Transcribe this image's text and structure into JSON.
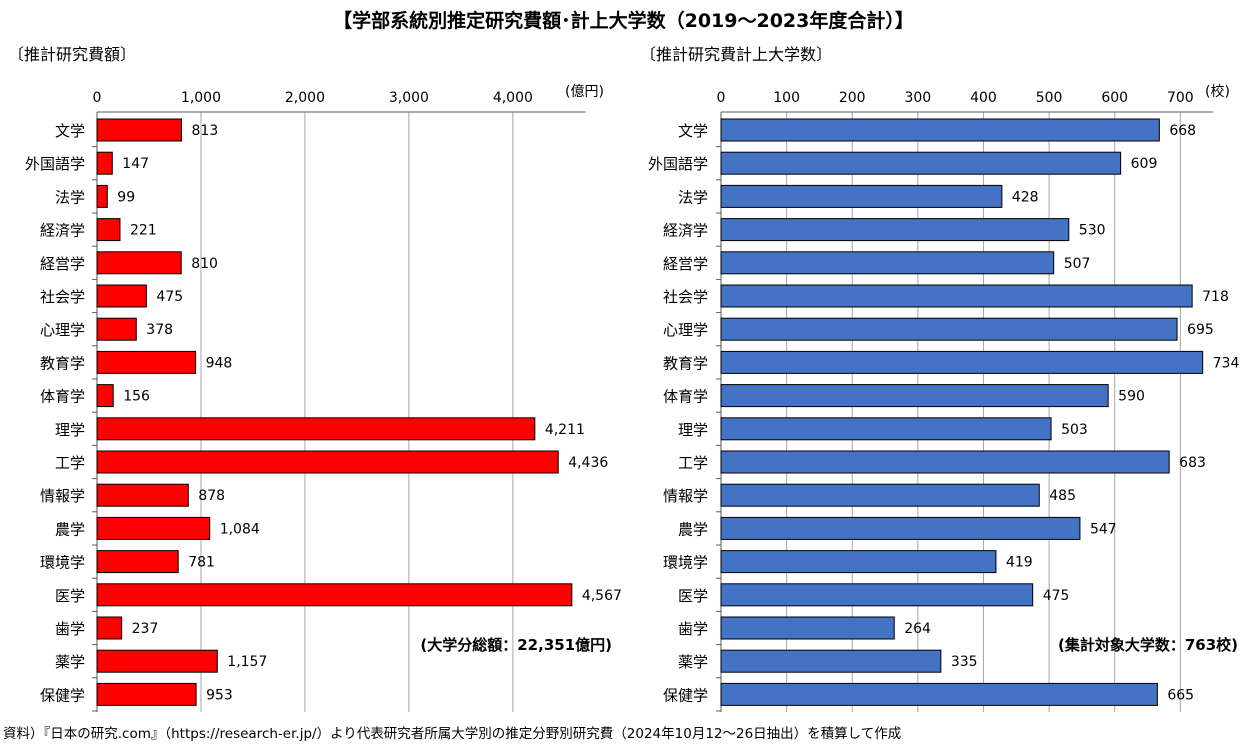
{
  "title": "【学部系統別推定研究費額･計上大学数（2019～2023年度合計）】",
  "footnote": "資料）『日本の研究.com』（https://research-er.jp/）より代表研究者所属大学別の推定分野別研究費（2024年10月12～26日抽出）を積算して作成",
  "chart_data": [
    {
      "type": "bar",
      "orientation": "horizontal",
      "title": "〔推計研究費額〕",
      "unit": "(億円)",
      "total_note": "(大学分総額：22,351億円)",
      "color": "#ff0000",
      "xlim": [
        0,
        4700
      ],
      "ticks": [
        0,
        1000,
        2000,
        3000,
        4000
      ],
      "tick_labels": [
        "0",
        "1,000",
        "2,000",
        "3,000",
        "4,000"
      ],
      "categories": [
        "文学",
        "外国語学",
        "法学",
        "経済学",
        "経営学",
        "社会学",
        "心理学",
        "教育学",
        "体育学",
        "理学",
        "工学",
        "情報学",
        "農学",
        "環境学",
        "医学",
        "歯学",
        "薬学",
        "保健学"
      ],
      "values": [
        813,
        147,
        99,
        221,
        810,
        475,
        378,
        948,
        156,
        4211,
        4436,
        878,
        1084,
        781,
        4567,
        237,
        1157,
        953
      ],
      "value_labels": [
        "813",
        "147",
        "99",
        "221",
        "810",
        "475",
        "378",
        "948",
        "156",
        "4,211",
        "4,436",
        "878",
        "1,084",
        "781",
        "4,567",
        "237",
        "1,157",
        "953"
      ]
    },
    {
      "type": "bar",
      "orientation": "horizontal",
      "title": "〔推計研究費計上大学数〕",
      "unit": "(校)",
      "total_note": "(集計対象大学数：763校)",
      "color": "#4472c4",
      "xlim": [
        0,
        750
      ],
      "ticks": [
        0,
        100,
        200,
        300,
        400,
        500,
        600,
        700
      ],
      "tick_labels": [
        "0",
        "100",
        "200",
        "300",
        "400",
        "500",
        "600",
        "700"
      ],
      "categories": [
        "文学",
        "外国語学",
        "法学",
        "経済学",
        "経営学",
        "社会学",
        "心理学",
        "教育学",
        "体育学",
        "理学",
        "工学",
        "情報学",
        "農学",
        "環境学",
        "医学",
        "歯学",
        "薬学",
        "保健学"
      ],
      "values": [
        668,
        609,
        428,
        530,
        507,
        718,
        695,
        734,
        590,
        503,
        683,
        485,
        547,
        419,
        475,
        264,
        335,
        665
      ],
      "value_labels": [
        "668",
        "609",
        "428",
        "530",
        "507",
        "718",
        "695",
        "734",
        "590",
        "503",
        "683",
        "485",
        "547",
        "419",
        "475",
        "264",
        "335",
        "665"
      ]
    }
  ]
}
